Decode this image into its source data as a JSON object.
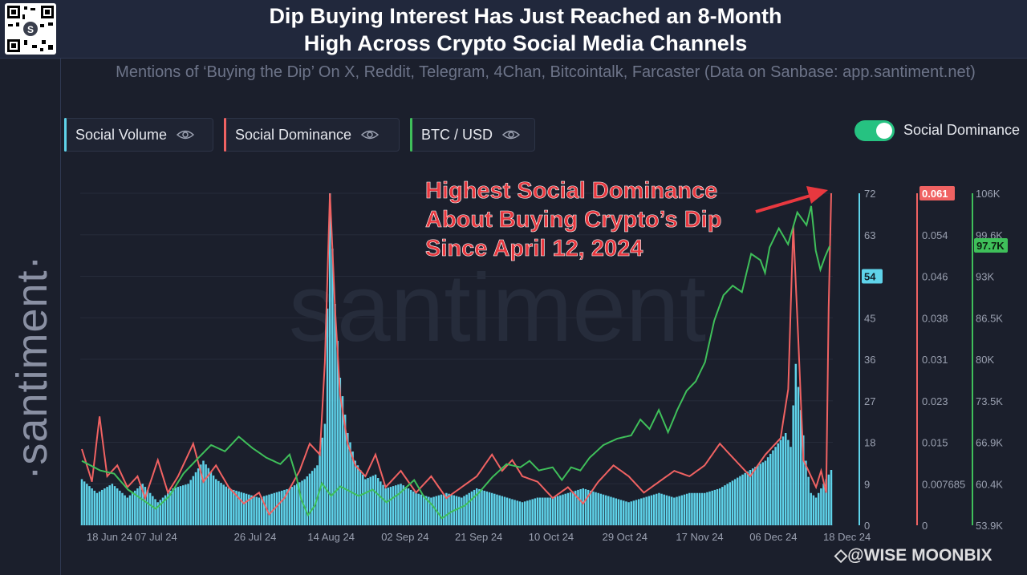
{
  "header": {
    "title_line1": "Dip Buying Interest Has Just Reached an 8-Month",
    "title_line2": "High Across Crypto Social Media Channels",
    "subtitle": "Mentions of ‘Buying the Dip’ On X, Reddit, Telegram, 4Chan, Bitcointalk, Farcaster (Data on Sanbase: app.santiment.net)"
  },
  "sidebar": {
    "brand": "·santiment·"
  },
  "legend": [
    {
      "label": "Social Volume",
      "color": "#5fd3ea"
    },
    {
      "label": "Social Dominance",
      "color": "#f06262"
    },
    {
      "label": "BTC / USD",
      "color": "#3fbf5a"
    }
  ],
  "toggle": {
    "label": "Social Dominance",
    "on": true
  },
  "watermark_brand": "santiment",
  "annotation": {
    "line1": "Highest Social Dominance",
    "line2": "About Buying Crypto’s Dip",
    "line3": "Since April 12, 2024"
  },
  "footer_watermark": "◇@WISE MOONBIX",
  "chart_data": {
    "type": "bar+line",
    "x_ticks": [
      "18 Jun 24",
      "07 Jul 24",
      "26 Jul 24",
      "14 Aug 24",
      "02 Sep 24",
      "21 Sep 24",
      "10 Oct 24",
      "29 Oct 24",
      "17 Nov 24",
      "06 Dec 24",
      "18 Dec 24"
    ],
    "axes": {
      "social_volume": {
        "ticks": [
          "72",
          "63",
          "54",
          "45",
          "36",
          "27",
          "18",
          "9",
          "0"
        ],
        "ylim": [
          0,
          72
        ],
        "current_label": "54"
      },
      "social_dominance": {
        "ticks": [
          "0.054",
          "0.046",
          "0.038",
          "0.031",
          "0.023",
          "0.015",
          "0.007685",
          "0"
        ],
        "ylim": [
          0,
          0.061
        ],
        "current_label": "0.061"
      },
      "btc_usd": {
        "ticks": [
          "106K",
          "99.6K",
          "93K",
          "86.5K",
          "80K",
          "73.5K",
          "66.9K",
          "60.4K",
          "53.9K"
        ],
        "ylim": [
          53900,
          106000
        ],
        "current_label": "97.7K"
      }
    },
    "series": [
      {
        "name": "Social Volume",
        "type": "bar",
        "color": "#5fd3ea",
        "anchors": [
          [
            0,
            10
          ],
          [
            6,
            7
          ],
          [
            12,
            9
          ],
          [
            18,
            6
          ],
          [
            24,
            9
          ],
          [
            30,
            5
          ],
          [
            36,
            8
          ],
          [
            42,
            9
          ],
          [
            48,
            14
          ],
          [
            53,
            10
          ],
          [
            58,
            8
          ],
          [
            64,
            7
          ],
          [
            70,
            6
          ],
          [
            76,
            7
          ],
          [
            82,
            8
          ],
          [
            88,
            10
          ],
          [
            93,
            13
          ],
          [
            96,
            22
          ],
          [
            98,
            72
          ],
          [
            100,
            48
          ],
          [
            102,
            32
          ],
          [
            105,
            20
          ],
          [
            108,
            14
          ],
          [
            112,
            10
          ],
          [
            116,
            11
          ],
          [
            120,
            8
          ],
          [
            126,
            9
          ],
          [
            132,
            7
          ],
          [
            138,
            6
          ],
          [
            144,
            7
          ],
          [
            150,
            6
          ],
          [
            156,
            8
          ],
          [
            162,
            7
          ],
          [
            168,
            6
          ],
          [
            174,
            5
          ],
          [
            180,
            6
          ],
          [
            186,
            6
          ],
          [
            192,
            7
          ],
          [
            198,
            8
          ],
          [
            204,
            7
          ],
          [
            210,
            6
          ],
          [
            216,
            5
          ],
          [
            222,
            6
          ],
          [
            228,
            7
          ],
          [
            234,
            6
          ],
          [
            240,
            7
          ],
          [
            246,
            7
          ],
          [
            252,
            8
          ],
          [
            258,
            10
          ],
          [
            264,
            12
          ],
          [
            270,
            14
          ],
          [
            274,
            17
          ],
          [
            278,
            20
          ],
          [
            280,
            17
          ],
          [
            282,
            35
          ],
          [
            284,
            25
          ],
          [
            286,
            14
          ],
          [
            288,
            7
          ],
          [
            290,
            6
          ],
          [
            292,
            8
          ],
          [
            294,
            10
          ],
          [
            296,
            12
          ]
        ]
      },
      {
        "name": "Social Dominance",
        "type": "line",
        "color": "#f06262",
        "anchors": [
          [
            0,
            0.014
          ],
          [
            4,
            0.008
          ],
          [
            7,
            0.02
          ],
          [
            10,
            0.009
          ],
          [
            14,
            0.011
          ],
          [
            18,
            0.007
          ],
          [
            22,
            0.009
          ],
          [
            25,
            0.005
          ],
          [
            30,
            0.012
          ],
          [
            34,
            0.006
          ],
          [
            38,
            0.009
          ],
          [
            44,
            0.015
          ],
          [
            48,
            0.008
          ],
          [
            53,
            0.011
          ],
          [
            58,
            0.007
          ],
          [
            64,
            0.004
          ],
          [
            70,
            0.006
          ],
          [
            74,
            0.002
          ],
          [
            80,
            0.005
          ],
          [
            86,
            0.01
          ],
          [
            90,
            0.015
          ],
          [
            94,
            0.013
          ],
          [
            96,
            0.03
          ],
          [
            98,
            0.061
          ],
          [
            100,
            0.04
          ],
          [
            102,
            0.024
          ],
          [
            105,
            0.015
          ],
          [
            108,
            0.011
          ],
          [
            112,
            0.009
          ],
          [
            116,
            0.013
          ],
          [
            120,
            0.007
          ],
          [
            126,
            0.01
          ],
          [
            132,
            0.006
          ],
          [
            138,
            0.009
          ],
          [
            144,
            0.005
          ],
          [
            150,
            0.007
          ],
          [
            156,
            0.009
          ],
          [
            162,
            0.013
          ],
          [
            166,
            0.01
          ],
          [
            170,
            0.012
          ],
          [
            174,
            0.009
          ],
          [
            180,
            0.008
          ],
          [
            186,
            0.005
          ],
          [
            192,
            0.007
          ],
          [
            198,
            0.004
          ],
          [
            204,
            0.008
          ],
          [
            210,
            0.011
          ],
          [
            216,
            0.009
          ],
          [
            222,
            0.006
          ],
          [
            228,
            0.008
          ],
          [
            234,
            0.01
          ],
          [
            240,
            0.009
          ],
          [
            246,
            0.011
          ],
          [
            252,
            0.015
          ],
          [
            258,
            0.012
          ],
          [
            264,
            0.009
          ],
          [
            270,
            0.013
          ],
          [
            276,
            0.016
          ],
          [
            279,
            0.025
          ],
          [
            281,
            0.055
          ],
          [
            283,
            0.034
          ],
          [
            285,
            0.012
          ],
          [
            288,
            0.009
          ],
          [
            290,
            0.007
          ],
          [
            292,
            0.01
          ],
          [
            294,
            0.006
          ],
          [
            295,
            0.04
          ],
          [
            296,
            0.061
          ]
        ]
      },
      {
        "name": "BTC / USD",
        "type": "line",
        "color": "#3fbf5a",
        "anchors": [
          [
            0,
            64000
          ],
          [
            8,
            62500
          ],
          [
            14,
            62000
          ],
          [
            20,
            59500
          ],
          [
            26,
            58000
          ],
          [
            32,
            56500
          ],
          [
            38,
            58500
          ],
          [
            44,
            62000
          ],
          [
            50,
            64300
          ],
          [
            56,
            66500
          ],
          [
            62,
            65500
          ],
          [
            68,
            67800
          ],
          [
            74,
            66000
          ],
          [
            80,
            64500
          ],
          [
            86,
            63500
          ],
          [
            90,
            65000
          ],
          [
            93,
            61500
          ],
          [
            95,
            58000
          ],
          [
            98,
            55500
          ],
          [
            101,
            57000
          ],
          [
            104,
            60500
          ],
          [
            108,
            58500
          ],
          [
            112,
            60000
          ],
          [
            120,
            58500
          ],
          [
            126,
            59500
          ],
          [
            132,
            57500
          ],
          [
            138,
            59000
          ],
          [
            144,
            61000
          ],
          [
            148,
            58500
          ],
          [
            152,
            57000
          ],
          [
            156,
            55000
          ],
          [
            160,
            56000
          ],
          [
            166,
            57000
          ],
          [
            172,
            59000
          ],
          [
            178,
            61500
          ],
          [
            184,
            63500
          ],
          [
            190,
            63000
          ],
          [
            194,
            64000
          ],
          [
            198,
            62500
          ],
          [
            204,
            63000
          ],
          [
            208,
            61000
          ],
          [
            212,
            63000
          ],
          [
            216,
            62500
          ],
          [
            220,
            64500
          ],
          [
            226,
            66500
          ],
          [
            232,
            67500
          ],
          [
            238,
            68000
          ],
          [
            242,
            70500
          ],
          [
            246,
            69000
          ],
          [
            250,
            72000
          ],
          [
            254,
            68500
          ],
          [
            258,
            72000
          ],
          [
            262,
            75000
          ],
          [
            266,
            76500
          ],
          [
            270,
            79500
          ],
          [
            274,
            86000
          ],
          [
            278,
            90000
          ],
          [
            282,
            91500
          ],
          [
            286,
            90500
          ],
          [
            290,
            96500
          ],
          [
            294,
            95500
          ],
          [
            296,
            93500
          ],
          [
            298,
            97500
          ],
          [
            302,
            100500
          ],
          [
            306,
            98000
          ],
          [
            310,
            103000
          ],
          [
            314,
            101000
          ],
          [
            316,
            104000
          ],
          [
            318,
            97000
          ],
          [
            320,
            94000
          ],
          [
            322,
            96000
          ],
          [
            324,
            97700
          ]
        ]
      }
    ]
  },
  "colors": {
    "background": "#1b1f2c",
    "header": "#21283c",
    "annotation": "#e8383f",
    "toggle_on": "#26c281"
  }
}
